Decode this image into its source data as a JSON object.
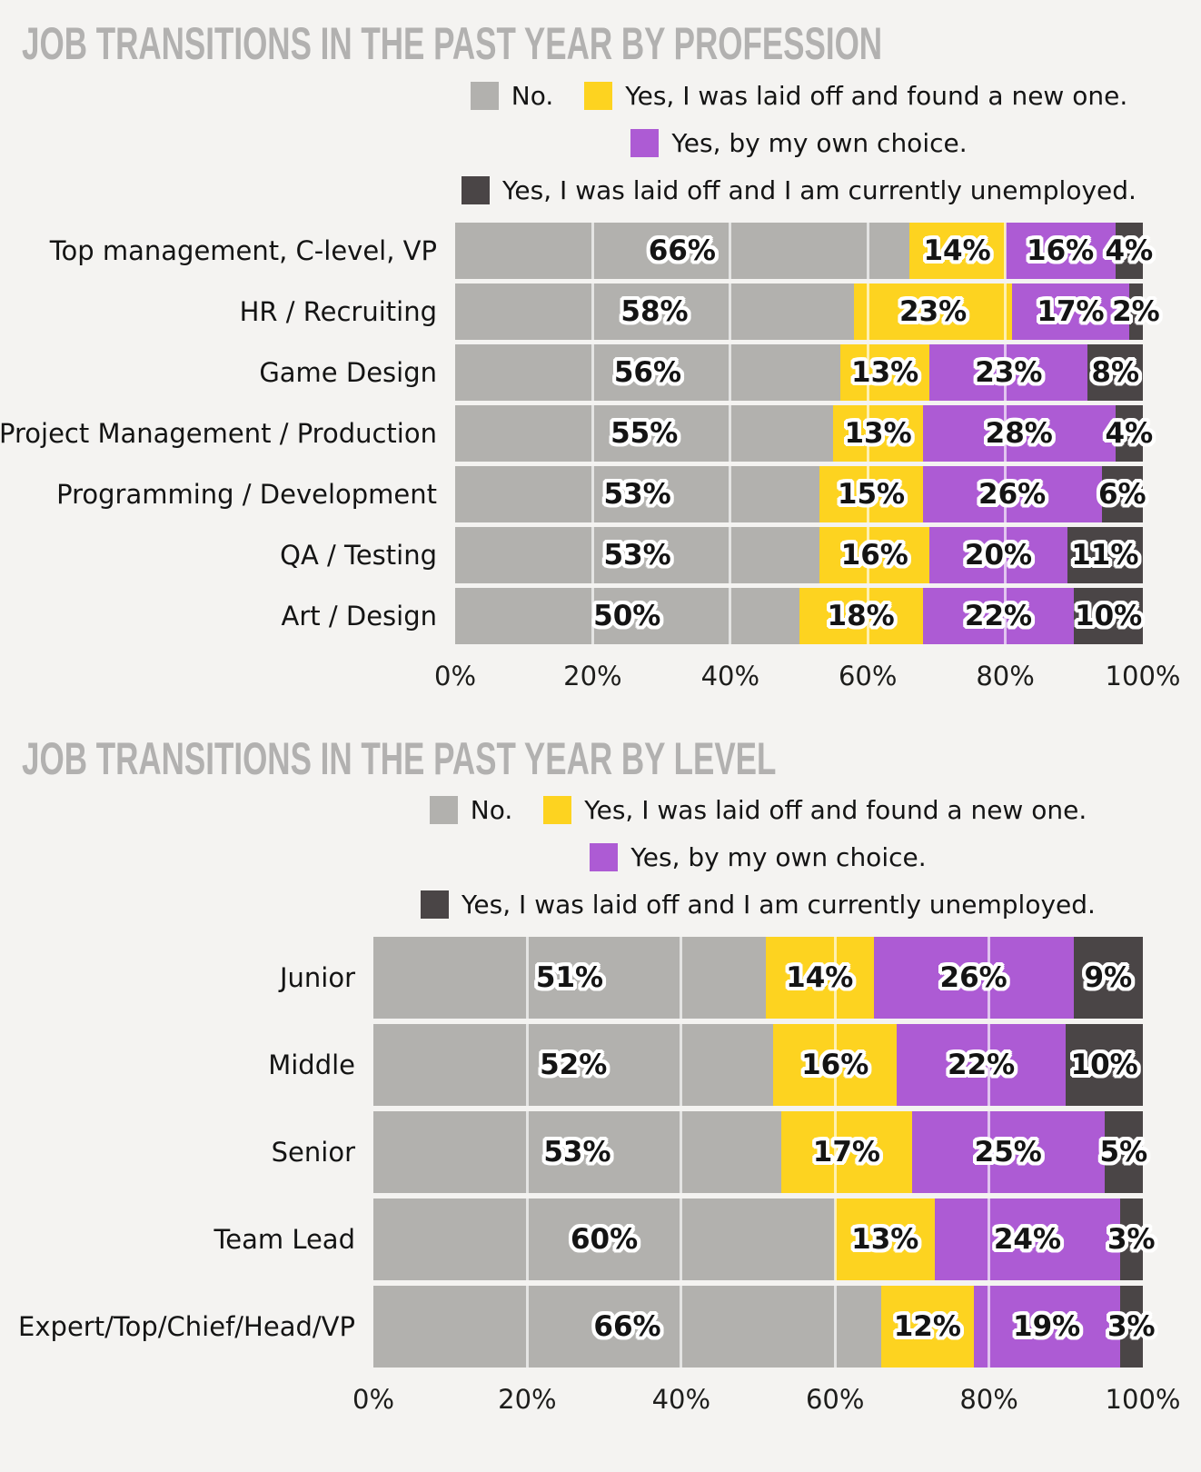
{
  "page": {
    "background": "#f4f3f1",
    "title_color": "#b2b1b0",
    "text_color": "#141414"
  },
  "legend": {
    "items": [
      {
        "key": "no",
        "label": "No.",
        "color": "#b2b1ae"
      },
      {
        "key": "laid-off-found-new",
        "label": "Yes, I was laid off and found a new one.",
        "color": "#fdd320"
      },
      {
        "key": "own-choice",
        "label": "Yes, by my own choice.",
        "color": "#ad5bd4"
      },
      {
        "key": "laid-off-unemployed",
        "label": "Yes, I was laid off and I am currently unemployed.",
        "color": "#4a4546"
      }
    ],
    "lines": [
      [
        0,
        1
      ],
      [
        2
      ],
      [
        3
      ]
    ],
    "position": "top-center"
  },
  "chart_data": [
    {
      "type": "bar",
      "stacked": true,
      "orientation": "horizontal",
      "title": "JOB TRANSITIONS IN THE PAST YEAR BY PROFESSION",
      "unit": "%",
      "xlim": [
        0,
        100
      ],
      "x_tick_labels": [
        "0%",
        "20%",
        "40%",
        "60%",
        "80%",
        "100%"
      ],
      "grid": true,
      "categories": [
        "Top management, C-level, VP",
        "HR / Recruiting",
        "Game Design",
        "Project Management / Production",
        "Programming / Development",
        "QA / Testing",
        "Art / Design"
      ],
      "series": [
        {
          "name": "No.",
          "values": [
            66,
            58,
            56,
            55,
            53,
            53,
            50
          ]
        },
        {
          "name": "Yes, I was laid off and found a new one.",
          "values": [
            14,
            23,
            13,
            13,
            15,
            16,
            18
          ]
        },
        {
          "name": "Yes, by my own choice.",
          "values": [
            16,
            17,
            23,
            28,
            26,
            20,
            22
          ]
        },
        {
          "name": "Yes, I was laid off and I am currently unemployed.",
          "values": [
            4,
            2,
            8,
            4,
            6,
            11,
            10
          ]
        }
      ]
    },
    {
      "type": "bar",
      "stacked": true,
      "orientation": "horizontal",
      "title": "JOB TRANSITIONS IN THE PAST YEAR BY LEVEL",
      "unit": "%",
      "xlim": [
        0,
        100
      ],
      "x_tick_labels": [
        "0%",
        "20%",
        "40%",
        "60%",
        "80%",
        "100%"
      ],
      "grid": true,
      "categories": [
        "Junior",
        "Middle",
        "Senior",
        "Team Lead",
        "Expert/Top/Chief/Head/VP"
      ],
      "series": [
        {
          "name": "No.",
          "values": [
            51,
            52,
            53,
            60,
            66
          ]
        },
        {
          "name": "Yes, I was laid off and found a new one.",
          "values": [
            14,
            16,
            17,
            13,
            12
          ]
        },
        {
          "name": "Yes, by my own choice.",
          "values": [
            26,
            22,
            25,
            24,
            19
          ]
        },
        {
          "name": "Yes, I was laid off and I am currently unemployed.",
          "values": [
            9,
            10,
            5,
            3,
            3
          ]
        }
      ]
    }
  ]
}
